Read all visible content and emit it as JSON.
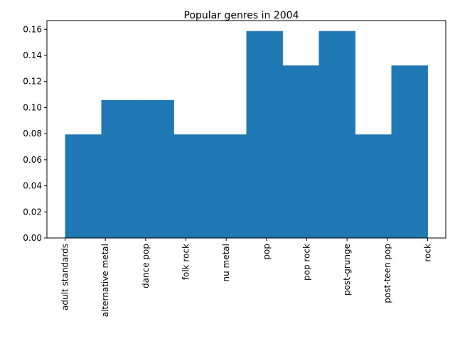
{
  "chart_data": {
    "type": "bar",
    "title": "Popular genres in 2004",
    "xlabel": "",
    "ylabel": "",
    "categories": [
      "adult standards",
      "alternative metal",
      "dance pop",
      "folk rock",
      "nu metal",
      "pop",
      "pop rock",
      "post-grunge",
      "post-teen pop",
      "rock"
    ],
    "bins": [
      {
        "start": 0.0,
        "end": 0.9,
        "value": 0.0794
      },
      {
        "start": 0.9,
        "end": 1.8,
        "value": 0.1058
      },
      {
        "start": 1.8,
        "end": 2.7,
        "value": 0.1058
      },
      {
        "start": 2.7,
        "end": 3.6,
        "value": 0.0794
      },
      {
        "start": 3.6,
        "end": 4.5,
        "value": 0.0794
      },
      {
        "start": 4.5,
        "end": 5.4,
        "value": 0.1587
      },
      {
        "start": 5.4,
        "end": 6.3,
        "value": 0.1323
      },
      {
        "start": 6.3,
        "end": 7.2,
        "value": 0.1587
      },
      {
        "start": 7.2,
        "end": 8.1,
        "value": 0.0794
      },
      {
        "start": 8.1,
        "end": 9.0,
        "value": 0.1323
      }
    ],
    "xlim": [
      -0.45,
      9.45
    ],
    "ylim": [
      0,
      0.1667
    ],
    "yticks": [
      0.0,
      0.02,
      0.04,
      0.06,
      0.08,
      0.1,
      0.12,
      0.14,
      0.16
    ],
    "ytick_labels": [
      "0.00",
      "0.02",
      "0.04",
      "0.06",
      "0.08",
      "0.10",
      "0.12",
      "0.14",
      "0.16"
    ],
    "grid": false,
    "bar_color": "#1f77b4"
  }
}
